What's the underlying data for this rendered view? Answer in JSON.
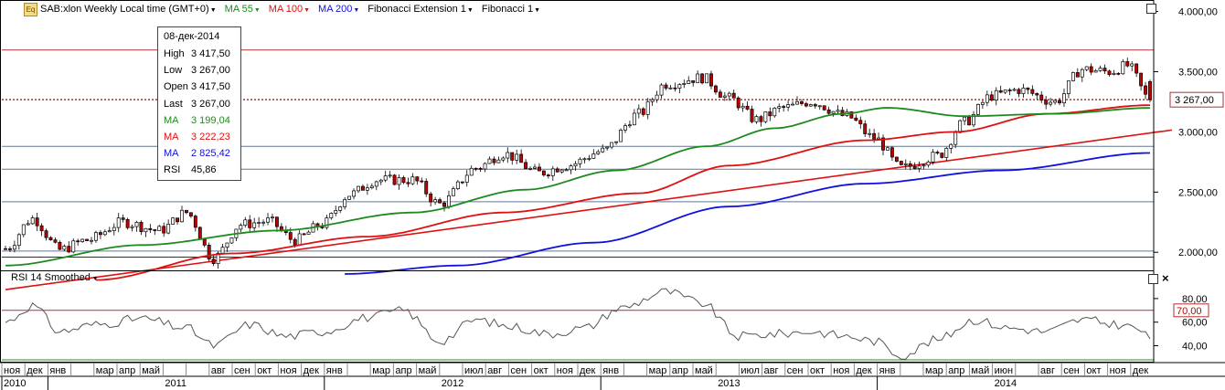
{
  "header": {
    "icon": "Eq",
    "items": [
      {
        "label": "SAB:xlon Weekly Local time (GMT+0)",
        "color": "#000000"
      },
      {
        "label": "MA 55",
        "color": "#1e8a1e"
      },
      {
        "label": "MA 100",
        "color": "#e01010"
      },
      {
        "label": "MA 200",
        "color": "#1010e0"
      },
      {
        "label": "Fibonacci Extension 1",
        "color": "#000000"
      },
      {
        "label": "Fibonacci 1",
        "color": "#000000"
      }
    ]
  },
  "tooltip": {
    "date": "08-дек-2014",
    "rows": [
      {
        "k": "High",
        "v": "3 417,50",
        "color": "#000000"
      },
      {
        "k": "Low",
        "v": "3 267,00",
        "color": "#000000"
      },
      {
        "k": "Open",
        "v": "3 417,50",
        "color": "#000000"
      },
      {
        "k": "Last",
        "v": "3 267,00",
        "color": "#000000"
      },
      {
        "k": "MA",
        "v": "3 199,04",
        "color": "#1e8a1e"
      },
      {
        "k": "MA",
        "v": "3 222,23",
        "color": "#e01010"
      },
      {
        "k": "MA",
        "v": "2 825,42",
        "color": "#1010e0"
      },
      {
        "k": "RSI",
        "v": "45,86",
        "color": "#000000"
      }
    ]
  },
  "rsi_panel": {
    "title": "RSI 14 Smoothed"
  },
  "colors": {
    "ma55": "#1e8a1e",
    "ma100": "#e01010",
    "ma200": "#1010e0",
    "rsi": "#555555",
    "level": "#b03030",
    "up": "#ffffff",
    "down": "#c00000"
  },
  "chart_data": {
    "type": "candlestick",
    "price_axis": {
      "ticks": [
        2000,
        2500,
        3000,
        3500,
        4000
      ],
      "tick_labels": [
        "2.000,00",
        "2.500,00",
        "3.000,00",
        "3.500,00",
        "4.000,00"
      ],
      "range": [
        1850,
        4080
      ]
    },
    "last_price": {
      "value": 3267,
      "label": "3 267,00"
    },
    "horizontal_levels": [
      {
        "value": 3680,
        "color": "#b03030"
      },
      {
        "value": 3267,
        "color": "#b03030",
        "dotted": true
      },
      {
        "value": 2880,
        "color": "#607890"
      },
      {
        "value": 2690,
        "color": "#607890"
      },
      {
        "value": 2420,
        "color": "#607890"
      },
      {
        "value": 2010,
        "color": "#607890"
      },
      {
        "value": 1960,
        "color": "#2020a0"
      }
    ],
    "trendline": {
      "from": {
        "week": 0,
        "value": 1690
      },
      "to": {
        "week": 253,
        "value": 2985
      },
      "color": "#e01010"
    },
    "time_axis": {
      "months": [
        "ноя",
        "дек",
        "янв",
        "",
        "мар",
        "апр",
        "май",
        "",
        "",
        "авг",
        "сен",
        "окт",
        "ноя",
        "дек",
        "янв",
        "",
        "мар",
        "апр",
        "май",
        "",
        "июл",
        "авг",
        "сен",
        "окт",
        "ноя",
        "дек",
        "янв",
        "",
        "мар",
        "апр",
        "май",
        "",
        "июл",
        "авг",
        "сен",
        "окт",
        "ноя",
        "дек",
        "янв",
        "",
        "мар",
        "апр",
        "май",
        "июн",
        "",
        "авг",
        "сен",
        "окт",
        "ноя",
        "дек"
      ],
      "years": [
        {
          "label": "2010",
          "month_index": 0
        },
        {
          "label": "2011",
          "month_index": 2
        },
        {
          "label": "2012",
          "month_index": 14
        },
        {
          "label": "2013",
          "month_index": 26
        },
        {
          "label": "2014",
          "month_index": 38
        }
      ]
    },
    "close_anchors": [
      {
        "week": 0,
        "value": 2030
      },
      {
        "week": 6,
        "value": 2280
      },
      {
        "week": 12,
        "value": 2020
      },
      {
        "week": 18,
        "value": 2100
      },
      {
        "week": 26,
        "value": 2250
      },
      {
        "week": 34,
        "value": 2180
      },
      {
        "week": 40,
        "value": 2330
      },
      {
        "week": 46,
        "value": 1950
      },
      {
        "week": 52,
        "value": 2230
      },
      {
        "week": 58,
        "value": 2260
      },
      {
        "week": 64,
        "value": 2100
      },
      {
        "week": 70,
        "value": 2230
      },
      {
        "week": 76,
        "value": 2480
      },
      {
        "week": 82,
        "value": 2600
      },
      {
        "week": 90,
        "value": 2600
      },
      {
        "week": 96,
        "value": 2400
      },
      {
        "week": 104,
        "value": 2700
      },
      {
        "week": 110,
        "value": 2820
      },
      {
        "week": 118,
        "value": 2660
      },
      {
        "week": 124,
        "value": 2720
      },
      {
        "week": 132,
        "value": 2840
      },
      {
        "week": 140,
        "value": 3150
      },
      {
        "week": 146,
        "value": 3400
      },
      {
        "week": 154,
        "value": 3450
      },
      {
        "week": 160,
        "value": 3280
      },
      {
        "week": 166,
        "value": 3100
      },
      {
        "week": 172,
        "value": 3200
      },
      {
        "week": 178,
        "value": 3250
      },
      {
        "week": 186,
        "value": 3130
      },
      {
        "week": 192,
        "value": 2950
      },
      {
        "week": 198,
        "value": 2700
      },
      {
        "week": 206,
        "value": 2800
      },
      {
        "week": 212,
        "value": 3080
      },
      {
        "week": 218,
        "value": 3300
      },
      {
        "week": 224,
        "value": 3350
      },
      {
        "week": 232,
        "value": 3250
      },
      {
        "week": 238,
        "value": 3520
      },
      {
        "week": 244,
        "value": 3500
      },
      {
        "week": 248,
        "value": 3550
      },
      {
        "week": 253,
        "value": 3267
      }
    ],
    "ma55_anchors": [
      {
        "week": 0,
        "value": 1890
      },
      {
        "week": 30,
        "value": 2060
      },
      {
        "week": 60,
        "value": 2180
      },
      {
        "week": 90,
        "value": 2330
      },
      {
        "week": 115,
        "value": 2520
      },
      {
        "week": 135,
        "value": 2680
      },
      {
        "week": 155,
        "value": 2880
      },
      {
        "week": 170,
        "value": 3030
      },
      {
        "week": 185,
        "value": 3150
      },
      {
        "week": 195,
        "value": 3200
      },
      {
        "week": 212,
        "value": 3130
      },
      {
        "week": 232,
        "value": 3150
      },
      {
        "week": 253,
        "value": 3199
      }
    ],
    "ma100_anchors": [
      {
        "week": 20,
        "value": 1770
      },
      {
        "week": 50,
        "value": 1990
      },
      {
        "week": 80,
        "value": 2130
      },
      {
        "week": 110,
        "value": 2330
      },
      {
        "week": 140,
        "value": 2490
      },
      {
        "week": 160,
        "value": 2720
      },
      {
        "week": 190,
        "value": 2930
      },
      {
        "week": 210,
        "value": 3000
      },
      {
        "week": 230,
        "value": 3150
      },
      {
        "week": 253,
        "value": 3222
      }
    ],
    "ma200_anchors": [
      {
        "week": 75,
        "value": 1820
      },
      {
        "week": 100,
        "value": 1890
      },
      {
        "week": 130,
        "value": 2080
      },
      {
        "week": 160,
        "value": 2380
      },
      {
        "week": 190,
        "value": 2570
      },
      {
        "week": 220,
        "value": 2680
      },
      {
        "week": 253,
        "value": 2825
      }
    ],
    "rsi": {
      "axis_ticks": [
        40,
        60,
        80
      ],
      "tick_labels": [
        "40,00",
        "60,00",
        "80,00"
      ],
      "range": [
        28,
        90
      ],
      "level": {
        "value": 70,
        "label": "70,00"
      },
      "anchors": [
        {
          "week": 0,
          "value": 60
        },
        {
          "week": 6,
          "value": 74
        },
        {
          "week": 12,
          "value": 52
        },
        {
          "week": 20,
          "value": 58
        },
        {
          "week": 30,
          "value": 63
        },
        {
          "week": 40,
          "value": 55
        },
        {
          "week": 46,
          "value": 40
        },
        {
          "week": 54,
          "value": 58
        },
        {
          "week": 62,
          "value": 48
        },
        {
          "week": 70,
          "value": 52
        },
        {
          "week": 80,
          "value": 64
        },
        {
          "week": 88,
          "value": 70
        },
        {
          "week": 96,
          "value": 44
        },
        {
          "week": 104,
          "value": 62
        },
        {
          "week": 112,
          "value": 56
        },
        {
          "week": 120,
          "value": 50
        },
        {
          "week": 128,
          "value": 55
        },
        {
          "week": 136,
          "value": 72
        },
        {
          "week": 146,
          "value": 86
        },
        {
          "week": 154,
          "value": 76
        },
        {
          "week": 162,
          "value": 48
        },
        {
          "week": 170,
          "value": 50
        },
        {
          "week": 178,
          "value": 52
        },
        {
          "week": 186,
          "value": 48
        },
        {
          "week": 192,
          "value": 44
        },
        {
          "week": 198,
          "value": 32
        },
        {
          "week": 206,
          "value": 45
        },
        {
          "week": 214,
          "value": 62
        },
        {
          "week": 222,
          "value": 55
        },
        {
          "week": 230,
          "value": 52
        },
        {
          "week": 238,
          "value": 62
        },
        {
          "week": 246,
          "value": 58
        },
        {
          "week": 250,
          "value": 55
        },
        {
          "week": 253,
          "value": 46
        }
      ]
    },
    "weeks": 254
  }
}
